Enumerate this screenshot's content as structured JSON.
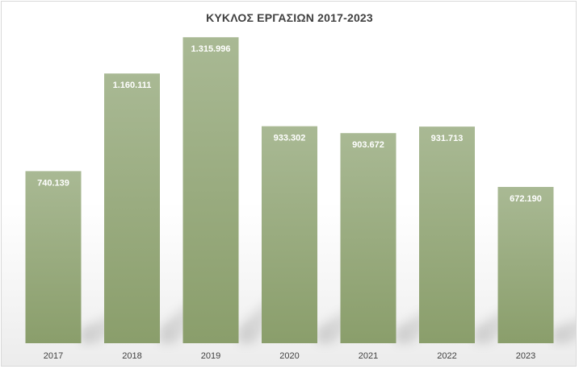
{
  "chart_data": {
    "type": "bar",
    "title": "ΚΥΚΛΟΣ ΕΡΓΑΣΙΩΝ 2017-2023",
    "categories": [
      "2017",
      "2018",
      "2019",
      "2020",
      "2021",
      "2022",
      "2023"
    ],
    "values": [
      740139,
      1160111,
      1315996,
      933302,
      903672,
      931713,
      672190
    ],
    "data_labels": [
      "740.139",
      "1.160.111",
      "1.315.996",
      "933.302",
      "903.672",
      "931.713",
      "672.190"
    ],
    "xlabel": "",
    "ylabel": "",
    "ylim": [
      0,
      1400000
    ],
    "grid": false,
    "legend": "none",
    "bar_color_top": "#a9b994",
    "bar_color_bottom": "#8a9e6b",
    "title_color": "#404040"
  }
}
